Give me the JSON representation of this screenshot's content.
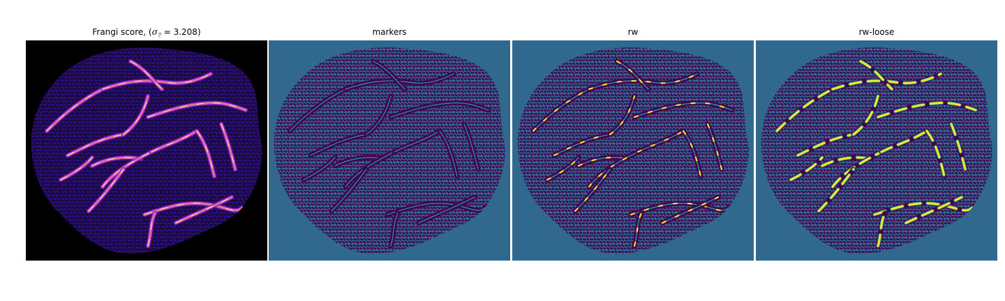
{
  "figure": {
    "panels": [
      {
        "title_prefix": "Frangi score, (",
        "title_symbol": "σ",
        "title_sub": "7",
        "title_suffix": " = 3.208)"
      },
      {
        "title": "markers"
      },
      {
        "title": "rw"
      },
      {
        "title": "rw-loose"
      }
    ]
  },
  "colors": {
    "frangi_background": "#000000",
    "frangi_tissue": "#1d0a3a",
    "frangi_texture": "#2c11a8",
    "frangi_vessel_mid": "#7a1fd0",
    "frangi_vessel_hot": "#e86a9a",
    "frangi_vessel_peak": "#fdd58b",
    "label_background": "#31688e",
    "label_tissue": "#440154",
    "label_marker": "#21918c",
    "label_vessel": "#fde725"
  }
}
